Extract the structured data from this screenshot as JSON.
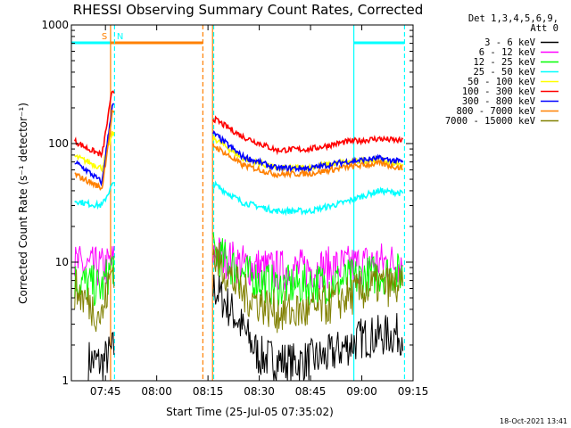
{
  "chart_data": {
    "type": "line",
    "title": "RHESSI Observing Summary Count Rates, Corrected",
    "xlabel": "Start Time (25-Jul-05 07:35:02)",
    "ylabel": "Corrected Count Rate (s⁻¹ detector⁻¹)",
    "yscale": "log",
    "ylim": [
      1,
      1000
    ],
    "xlim": [
      "07:35:02",
      "09:15:00"
    ],
    "x_ticks": [
      "07:45",
      "08:00",
      "08:15",
      "08:30",
      "08:45",
      "09:00",
      "09:15"
    ],
    "y_ticks": [
      "1",
      "10",
      "100",
      "1000"
    ],
    "grid": false,
    "legend_position": "right",
    "legend_header": [
      "Det 1,3,4,5,6,9,",
      "Att 0"
    ],
    "series": [
      {
        "name": "3 - 6 keV",
        "color": "#000000",
        "x": [
          "07:40",
          "07:44",
          "07:47",
          "08:17",
          "08:23",
          "08:30",
          "08:40",
          "08:50",
          "09:00",
          "09:12"
        ],
        "values": [
          1.5,
          1.4,
          1.8,
          6.0,
          3.5,
          1.6,
          1.4,
          1.6,
          2.3,
          2.5
        ]
      },
      {
        "name": "6 - 12 keV",
        "color": "#ff00ff",
        "x": [
          "07:36",
          "07:40",
          "07:45",
          "07:47",
          "08:17",
          "08:25",
          "08:35",
          "08:45",
          "08:55",
          "09:05",
          "09:12"
        ],
        "values": [
          9.5,
          9.0,
          9.0,
          10.0,
          12.0,
          9.5,
          8.5,
          8.8,
          9.2,
          10.0,
          9.8
        ]
      },
      {
        "name": "12 - 25 keV",
        "color": "#00ff00",
        "x": [
          "07:36",
          "07:40",
          "07:44",
          "07:47",
          "08:17",
          "08:25",
          "08:35",
          "08:45",
          "08:55",
          "09:05",
          "09:12"
        ],
        "values": [
          7.0,
          6.5,
          6.0,
          9.5,
          12.0,
          8.0,
          6.2,
          6.5,
          7.0,
          8.0,
          8.0
        ]
      },
      {
        "name": "25 - 50 keV",
        "color": "#00ffff",
        "x": [
          "07:36",
          "07:40",
          "07:44",
          "07:47",
          "08:17",
          "08:25",
          "08:35",
          "08:45",
          "08:55",
          "09:05",
          "09:12"
        ],
        "values": [
          33,
          31,
          30,
          45,
          45,
          32,
          27,
          27,
          32,
          40,
          38
        ]
      },
      {
        "name": "50 - 100 keV",
        "color": "#ffff00",
        "x": [
          "07:36",
          "07:40",
          "07:44",
          "07:47",
          "08:17",
          "08:25",
          "08:35",
          "08:45",
          "08:55",
          "09:05",
          "09:12"
        ],
        "values": [
          78,
          70,
          62,
          120,
          110,
          75,
          62,
          63,
          70,
          73,
          65
        ]
      },
      {
        "name": "100 - 300 keV",
        "color": "#ff0000",
        "x": [
          "07:36",
          "07:40",
          "07:44",
          "07:47",
          "08:17",
          "08:25",
          "08:35",
          "08:45",
          "08:55",
          "09:05",
          "09:12"
        ],
        "values": [
          105,
          90,
          80,
          280,
          160,
          115,
          88,
          90,
          103,
          110,
          105
        ]
      },
      {
        "name": "300 - 800 keV",
        "color": "#0000ff",
        "x": [
          "07:36",
          "07:40",
          "07:44",
          "07:47",
          "08:17",
          "08:25",
          "08:35",
          "08:45",
          "08:55",
          "09:05",
          "09:12"
        ],
        "values": [
          70,
          58,
          47,
          210,
          120,
          78,
          62,
          62,
          70,
          75,
          70
        ]
      },
      {
        "name": "800 - 7000 keV",
        "color": "#ff8000",
        "x": [
          "07:36",
          "07:40",
          "07:44",
          "07:47",
          "08:17",
          "08:25",
          "08:35",
          "08:45",
          "08:55",
          "09:05",
          "09:12"
        ],
        "values": [
          55,
          48,
          42,
          180,
          95,
          66,
          55,
          56,
          63,
          68,
          62
        ]
      },
      {
        "name": "7000 - 15000 keV",
        "color": "#808000",
        "x": [
          "07:36",
          "07:40",
          "07:44",
          "07:47",
          "08:17",
          "08:25",
          "08:35",
          "08:45",
          "08:55",
          "09:05",
          "09:12"
        ],
        "values": [
          6.0,
          4.5,
          3.5,
          9.0,
          11.0,
          5.5,
          3.8,
          3.8,
          5.0,
          6.5,
          6.0
        ]
      }
    ],
    "vertical_lines": [
      {
        "x": "07:46:30",
        "color": "#ff8000",
        "style": "solid"
      },
      {
        "x": "08:13:30",
        "color": "#ff8000",
        "style": "dashed"
      },
      {
        "x": "08:16:20",
        "color": "#ff8000",
        "style": "solid"
      },
      {
        "x": "07:47:40",
        "color": "#00ffff",
        "style": "dashed"
      },
      {
        "x": "08:16:40",
        "color": "#00ffff",
        "style": "dashed"
      },
      {
        "x": "08:57:40",
        "color": "#00ffff",
        "style": "solid"
      },
      {
        "x": "09:12:30",
        "color": "#00ffff",
        "style": "dashed"
      }
    ],
    "flag_bars": [
      {
        "label": "S",
        "color": "#ff8000",
        "start": "07:46:30",
        "end": "08:13:30"
      },
      {
        "label": "N",
        "color": "#00ffff",
        "start": "07:35:02",
        "end": "07:46:30"
      },
      {
        "label": "",
        "color": "#00ffff",
        "start": "08:57:40",
        "end": "09:12:30"
      }
    ],
    "data_gap": [
      "07:47:40",
      "08:16:20"
    ],
    "footer": "18-Oct-2021 13:41"
  }
}
